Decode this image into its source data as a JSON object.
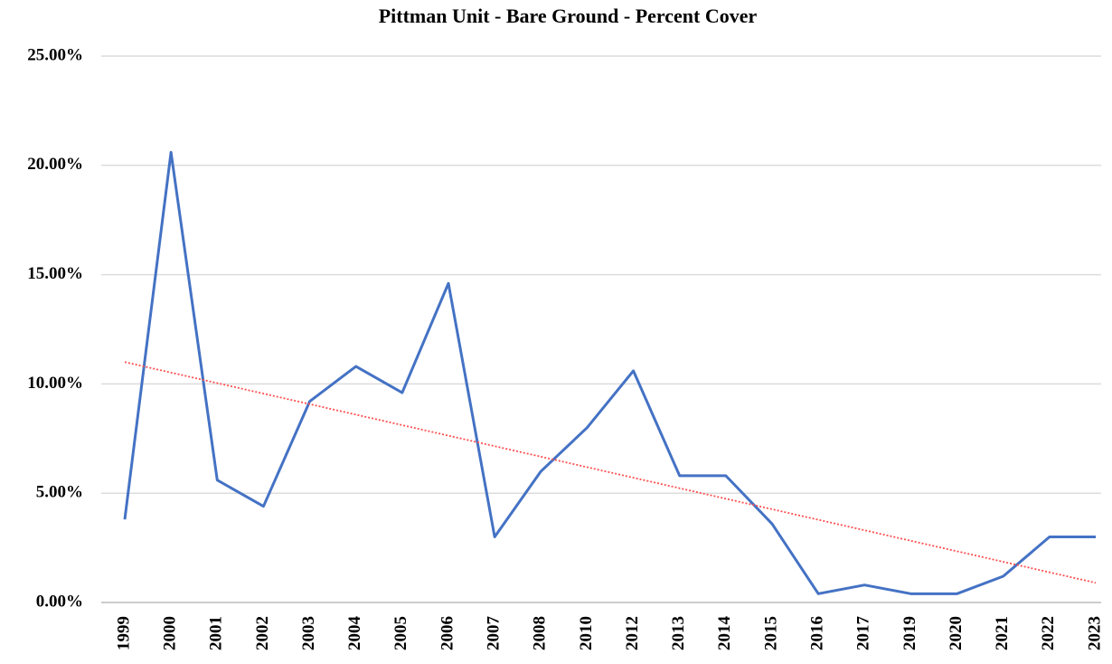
{
  "chart_data": {
    "type": "line",
    "title": "Pittman Unit - Bare Ground - Percent Cover",
    "categories": [
      "1999",
      "2000",
      "2001",
      "2002",
      "2003",
      "2004",
      "2005",
      "2006",
      "2007",
      "2008",
      "2010",
      "2012",
      "2013",
      "2014",
      "2015",
      "2016",
      "2017",
      "2019",
      "2020",
      "2021",
      "2022",
      "2023"
    ],
    "values": [
      3.8,
      20.6,
      5.6,
      4.4,
      9.2,
      10.8,
      9.6,
      14.6,
      3.0,
      6.0,
      8.0,
      10.6,
      5.8,
      5.8,
      3.6,
      0.4,
      0.8,
      0.4,
      0.4,
      1.2,
      3.0,
      3.0
    ],
    "color": "#4472c4",
    "trendline": {
      "values": [
        11.0,
        0.9
      ],
      "color": "#ff5050"
    },
    "ylim": [
      0,
      25
    ],
    "yticks": [
      {
        "value": 0,
        "label": "0.00%"
      },
      {
        "value": 5,
        "label": "5.00%"
      },
      {
        "value": 10,
        "label": "10.00%"
      },
      {
        "value": 15,
        "label": "15.00%"
      },
      {
        "value": 20,
        "label": "20.00%"
      },
      {
        "value": 25,
        "label": "25.00%"
      }
    ],
    "grid": true
  }
}
